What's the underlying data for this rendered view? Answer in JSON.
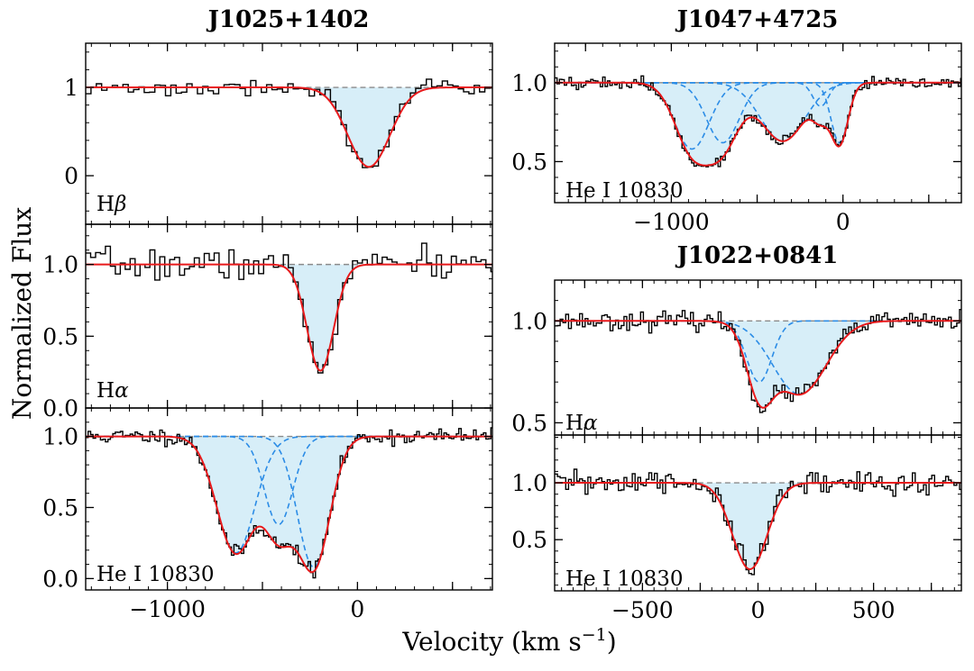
{
  "chart_data": {
    "type": "line",
    "ylabel": "Normalized Flux",
    "xlabel_main": "Velocity (km s",
    "xlabel_sup": "−1",
    "xlabel_end": ")",
    "titles": {
      "left": "J1025+1402",
      "right_top": "J1047+4725",
      "right_bottom": "J1022+0841"
    },
    "panels": [
      {
        "key": "p1",
        "object": "J1025+1402",
        "label": "Hβ",
        "label_base": "H",
        "label_greek": "β",
        "xlim": [
          -1430,
          710
        ],
        "ylim": [
          -0.55,
          1.5
        ],
        "yticks": [
          {
            "v": 0,
            "t": "0"
          },
          {
            "v": 1,
            "t": "1"
          }
        ],
        "yminor_step": 0.2,
        "xticks": [],
        "xminor_step": 100,
        "components": [
          {
            "center": 60,
            "depth": 0.9,
            "sigma": 110
          }
        ],
        "component_lines": false,
        "noise": 0.045,
        "seed": 3,
        "bin": 28
      },
      {
        "key": "p2",
        "object": "J1025+1402",
        "label": "Hα",
        "label_base": "H",
        "label_greek": "α",
        "xlim": [
          -1430,
          710
        ],
        "ylim": [
          0.0,
          1.28
        ],
        "yticks": [
          {
            "v": 0,
            "t": "0.0"
          },
          {
            "v": 0.5,
            "t": "0.5"
          },
          {
            "v": 1,
            "t": "1.0"
          }
        ],
        "yminor_step": 0.1,
        "xticks": [],
        "xminor_step": 100,
        "components": [
          {
            "center": -195,
            "depth": 0.74,
            "sigma": 70
          }
        ],
        "component_lines": false,
        "noise": 0.055,
        "seed": 7,
        "bin": 26
      },
      {
        "key": "p3",
        "object": "J1025+1402",
        "label": "He I 10830",
        "xlim": [
          -1430,
          710
        ],
        "ylim": [
          -0.08,
          1.2
        ],
        "yticks": [
          {
            "v": 0,
            "t": "0.0"
          },
          {
            "v": 0.5,
            "t": "0.5"
          },
          {
            "v": 1,
            "t": "1.0"
          }
        ],
        "yminor_step": 0.1,
        "xticks": [
          {
            "v": -1000,
            "t": "−1000"
          },
          {
            "v": 0,
            "t": "0"
          }
        ],
        "xminor_step": 100,
        "components": [
          {
            "center": -640,
            "depth": 0.82,
            "sigma": 100
          },
          {
            "center": -415,
            "depth": 0.62,
            "sigma": 75
          },
          {
            "center": -230,
            "depth": 0.92,
            "sigma": 85
          }
        ],
        "component_lines": true,
        "noise": 0.028,
        "seed": 11,
        "bin": 13
      },
      {
        "key": "p4",
        "object": "J1047+4725",
        "label": "He I 10830",
        "xlim": [
          -1680,
          690
        ],
        "ylim": [
          0.24,
          1.25
        ],
        "yticks": [
          {
            "v": 0.5,
            "t": "0.5"
          },
          {
            "v": 1,
            "t": "1.0"
          }
        ],
        "yminor_step": 0.1,
        "xticks": [
          {
            "v": -1000,
            "t": "−1000"
          },
          {
            "v": 0,
            "t": "0"
          }
        ],
        "xminor_step": 100,
        "components": [
          {
            "center": -880,
            "depth": 0.42,
            "sigma": 100
          },
          {
            "center": -700,
            "depth": 0.38,
            "sigma": 95
          },
          {
            "center": -350,
            "depth": 0.37,
            "sigma": 130
          },
          {
            "center": -130,
            "depth": 0.15,
            "sigma": 45
          },
          {
            "center": -20,
            "depth": 0.38,
            "sigma": 50
          }
        ],
        "component_lines": true,
        "noise": 0.018,
        "seed": 19,
        "bin": 14
      },
      {
        "key": "p5",
        "object": "J1022+0841",
        "label": "Hα",
        "label_base": "H",
        "label_greek": "α",
        "xlim": [
          -880,
          880
        ],
        "ylim": [
          0.44,
          1.2
        ],
        "yticks": [
          {
            "v": 0.5,
            "t": "0.5"
          },
          {
            "v": 1,
            "t": "1.0"
          }
        ],
        "yminor_step": 0.1,
        "xticks": [],
        "xminor_step": 50,
        "components": [
          {
            "center": 5,
            "depth": 0.3,
            "sigma": 55
          },
          {
            "center": 180,
            "depth": 0.36,
            "sigma": 115
          }
        ],
        "component_lines": true,
        "noise": 0.022,
        "seed": 23,
        "bin": 12
      },
      {
        "key": "p6",
        "object": "J1022+0841",
        "label": "He I 10830",
        "xlim": [
          -880,
          880
        ],
        "ylim": [
          0.05,
          1.42
        ],
        "yticks": [
          {
            "v": 0.5,
            "t": "0.5"
          },
          {
            "v": 1,
            "t": "1.0"
          }
        ],
        "yminor_step": 0.1,
        "xticks": [
          {
            "v": -500,
            "t": "−500"
          },
          {
            "v": 0,
            "t": "0"
          },
          {
            "v": 500,
            "t": "500"
          }
        ],
        "xminor_step": 50,
        "components": [
          {
            "center": -35,
            "depth": 0.76,
            "sigma": 75
          }
        ],
        "component_lines": false,
        "noise": 0.055,
        "seed": 31,
        "bin": 12
      }
    ]
  }
}
